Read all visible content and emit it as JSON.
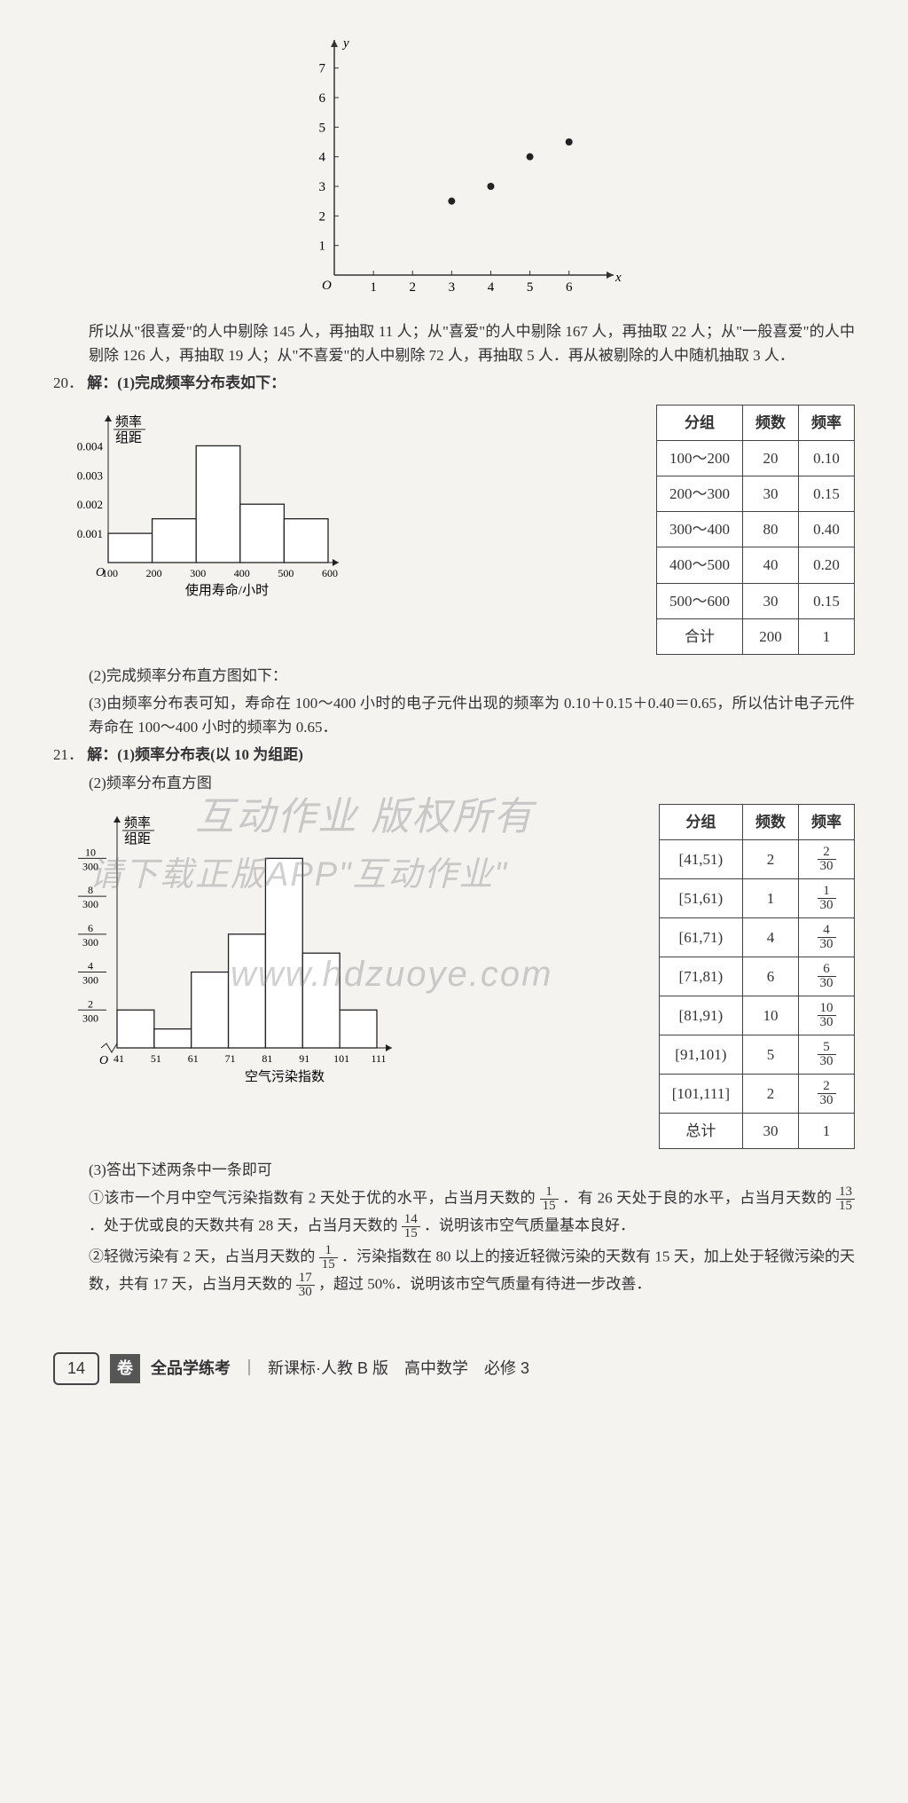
{
  "scatter": {
    "type": "scatter",
    "ylabel": "y",
    "xlabel": "x",
    "xticks": [
      1,
      2,
      3,
      4,
      5,
      6
    ],
    "yticks": [
      1,
      2,
      3,
      4,
      5,
      6,
      7
    ],
    "xlim": [
      0,
      6.8
    ],
    "ylim": [
      0,
      7.5
    ],
    "points": [
      [
        3,
        2.5
      ],
      [
        4,
        3
      ],
      [
        5,
        4
      ],
      [
        6,
        4.5
      ]
    ],
    "point_color": "#222",
    "axis_color": "#333",
    "fontsize": 15
  },
  "p19_tail": "所以从\"很喜爱\"的人中剔除 145 人，再抽取 11 人；从\"喜爱\"的人中剔除 167 人，再抽取 22 人；从\"一般喜爱\"的人中剔除 126 人，再抽取 19 人；从\"不喜爱\"的人中剔除 72 人，再抽取 5 人．再从被剔除的人中随机抽取 3 人．",
  "q20": {
    "num": "20．",
    "label": "解：(1)完成频率分布表如下：",
    "hist": {
      "type": "bar",
      "ylabel_top": "频率",
      "ylabel_bot": "组距",
      "xlabel": "使用寿命/小时",
      "xticks": [
        100,
        200,
        300,
        400,
        500,
        600
      ],
      "yticks": [
        "0.001",
        "0.002",
        "0.003",
        "0.004"
      ],
      "bars": [
        {
          "x": 100,
          "h": 0.001
        },
        {
          "x": 200,
          "h": 0.0015
        },
        {
          "x": 300,
          "h": 0.004
        },
        {
          "x": 400,
          "h": 0.002
        },
        {
          "x": 500,
          "h": 0.0015
        }
      ],
      "bar_fill": "#ffffff",
      "bar_stroke": "#222",
      "axis_color": "#222",
      "ylim": [
        0,
        0.0045
      ]
    },
    "table": {
      "columns": [
        "分组",
        "频数",
        "频率"
      ],
      "rows": [
        [
          "100～200",
          "20",
          "0.10"
        ],
        [
          "200～300",
          "30",
          "0.15"
        ],
        [
          "300～400",
          "80",
          "0.40"
        ],
        [
          "400～500",
          "40",
          "0.20"
        ],
        [
          "500～600",
          "30",
          "0.15"
        ],
        [
          "合计",
          "200",
          "1"
        ]
      ]
    },
    "p2": "(2)完成频率分布直方图如下：",
    "p3": "(3)由频率分布表可知，寿命在 100～400 小时的电子元件出现的频率为 0.10＋0.15＋0.40＝0.65，所以估计电子元件寿命在 100～400 小时的频率为 0.65．"
  },
  "q21": {
    "num": "21．",
    "label": "解：(1)频率分布表(以 10 为组距)",
    "label2": "(2)频率分布直方图",
    "hist": {
      "type": "bar",
      "ylabel_top": "频率",
      "ylabel_bot": "组距",
      "xlabel": "空气污染指数",
      "xticks": [
        41,
        51,
        61,
        71,
        81,
        91,
        101,
        111
      ],
      "ytick_fracs": [
        [
          "2",
          "300"
        ],
        [
          "4",
          "300"
        ],
        [
          "6",
          "300"
        ],
        [
          "8",
          "300"
        ],
        [
          "10",
          "300"
        ]
      ],
      "bars": [
        {
          "x": 41,
          "n": 2
        },
        {
          "x": 51,
          "n": 1
        },
        {
          "x": 61,
          "n": 4
        },
        {
          "x": 71,
          "n": 6
        },
        {
          "x": 81,
          "n": 10
        },
        {
          "x": 91,
          "n": 5
        },
        {
          "x": 101,
          "n": 2
        }
      ],
      "bar_fill": "#ffffff",
      "bar_stroke": "#222",
      "axis_color": "#222",
      "ylim": [
        0,
        11
      ]
    },
    "table": {
      "columns": [
        "分组",
        "频数",
        "频率"
      ],
      "rows": [
        [
          "[41,51)",
          "2",
          [
            "2",
            "30"
          ]
        ],
        [
          "[51,61)",
          "1",
          [
            "1",
            "30"
          ]
        ],
        [
          "[61,71)",
          "4",
          [
            "4",
            "30"
          ]
        ],
        [
          "[71,81)",
          "6",
          [
            "6",
            "30"
          ]
        ],
        [
          "[81,91)",
          "10",
          [
            "10",
            "30"
          ]
        ],
        [
          "[91,101)",
          "5",
          [
            "5",
            "30"
          ]
        ],
        [
          "[101,111]",
          "2",
          [
            "2",
            "30"
          ]
        ],
        [
          "总计",
          "30",
          "1"
        ]
      ]
    },
    "p3_intro": "(3)答出下述两条中一条即可",
    "p3_1a": "①该市一个月中空气污染指数有 2 天处于优的水平，占当月天数的",
    "p3_1a_frac": [
      "1",
      "15"
    ],
    "p3_1b": "．有 26 天处于良的水平，占当月天数的",
    "p3_1b_frac": [
      "13",
      "15"
    ],
    "p3_1c": "．处于优或良的天数共有 28 天，占当月天数的",
    "p3_1c_frac": [
      "14",
      "15"
    ],
    "p3_1d": "．说明该市空气质量基本良好．",
    "p3_2a": "②轻微污染有 2 天，占当月天数的",
    "p3_2a_frac": [
      "1",
      "15"
    ],
    "p3_2b": "．污染指数在 80 以上的接近轻微污染的天数有 15 天，加上处于轻微污染的天数，共有 17 天，占当月天数的",
    "p3_2b_frac": [
      "17",
      "30"
    ],
    "p3_2c": "，超过 50%．说明该市空气质量有待进一步改善．"
  },
  "watermarks": {
    "w1": "互动作业 版权所有",
    "w2": "请下载正版APP\"互动作业\"",
    "w3": "www.hdzuoye.com"
  },
  "footer": {
    "pagenum": "14",
    "badge": "卷",
    "title": "全品学练考",
    "sep": "｜",
    "sub": "新课标·人教 B 版　高中数学　必修 3"
  }
}
